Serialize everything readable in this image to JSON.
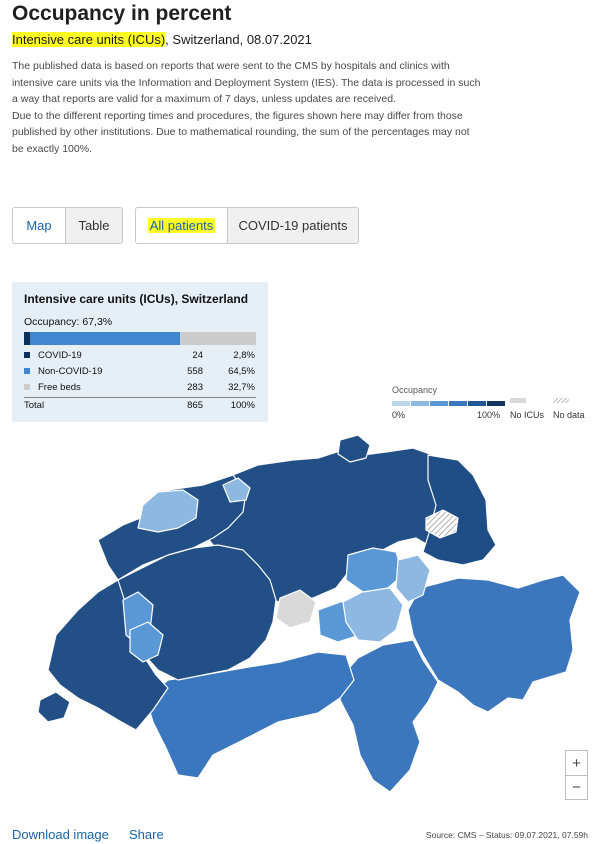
{
  "page": {
    "title": "Occupancy in percent",
    "subtitle_highlight": "Intensive care units (ICUs)",
    "subtitle_rest": ", Switzerland, 08.07.2021",
    "description_1": "The published data is based on reports that were sent to the CMS by hospitals and clinics with intensive care units via the Information and Deployment System (IES). The data is processed in such a way that reports are valid for a maximum of 7 days, unless updates are received.",
    "description_2": "Due to the different reporting times and procedures, the figures shown here may differ from those published by other institutions. Due to mathematical rounding, the sum of the percentages may not be exactly 100%."
  },
  "view_toggle": {
    "map": "Map",
    "table": "Table",
    "selected": "Map"
  },
  "patient_toggle": {
    "all": "All patients",
    "covid": "COVID-19 patients",
    "selected": "All patients"
  },
  "summary": {
    "title": "Intensive care units (ICUs), Switzerland",
    "occupancy_label": "Occupancy: 67,3%",
    "occupancy_fraction": 0.673,
    "rows": [
      {
        "label": "COVID-19",
        "count": "24",
        "percent": "2,8%",
        "color": "#0e2f5a",
        "fraction": 0.028
      },
      {
        "label": "Non-COVID-19",
        "count": "558",
        "percent": "64,5%",
        "color": "#3f87cf",
        "fraction": 0.645
      },
      {
        "label": "Free beds",
        "count": "283",
        "percent": "32,7%",
        "color": "#cccccc",
        "fraction": 0.327
      }
    ],
    "total": {
      "label": "Total",
      "count": "865",
      "percent": "100%"
    }
  },
  "legend": {
    "title": "Occupancy",
    "scale_colors": [
      "#bcd6ee",
      "#8cb8e2",
      "#5a98d5",
      "#3a77be",
      "#1f5796",
      "#12365f"
    ],
    "min_label": "0%",
    "max_label": "100%",
    "no_icus_label": "No ICUs",
    "no_data_label": "No data",
    "no_icus_color": "#d9d9d9"
  },
  "zoom": {
    "in": "+",
    "out": "−"
  },
  "footer": {
    "download": "Download image",
    "share": "Share",
    "source": "Source: CMS – Status: 09.07.2021, 07.59h"
  }
}
